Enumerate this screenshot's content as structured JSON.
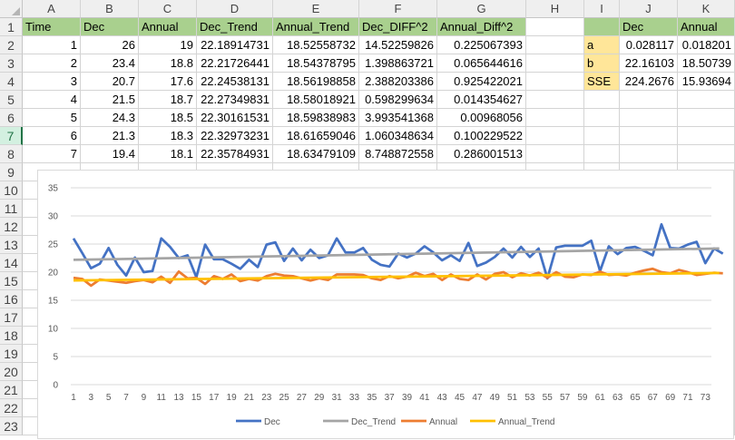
{
  "columns": [
    "A",
    "B",
    "C",
    "D",
    "E",
    "F",
    "G",
    "H",
    "I",
    "J",
    "K"
  ],
  "rows": [
    "1",
    "2",
    "3",
    "4",
    "5",
    "6",
    "7",
    "8",
    "9",
    "10",
    "11",
    "12",
    "13",
    "14",
    "15",
    "16",
    "17",
    "18",
    "19",
    "20",
    "21",
    "22",
    "23"
  ],
  "headers": [
    "Time",
    "Dec",
    "Annual",
    "Dec_Trend",
    "Annual_Trend",
    "Dec_DIFF^2",
    "Annual_Diff^2"
  ],
  "data_rows": [
    [
      "1",
      "26",
      "19",
      "22.18914731",
      "18.52558732",
      "14.52259826",
      "0.225067393"
    ],
    [
      "2",
      "23.4",
      "18.8",
      "22.21726441",
      "18.54378795",
      "1.398863721",
      "0.065644616"
    ],
    [
      "3",
      "20.7",
      "17.6",
      "22.24538131",
      "18.56198858",
      "2.388203386",
      "0.925422021"
    ],
    [
      "4",
      "21.5",
      "18.7",
      "22.27349831",
      "18.58018921",
      "0.598299634",
      "0.014354627"
    ],
    [
      "5",
      "24.3",
      "18.5",
      "22.30161531",
      "18.59838983",
      "3.993541368",
      "0.00968056"
    ],
    [
      "6",
      "21.3",
      "18.3",
      "22.32973231",
      "18.61659046",
      "1.060348634",
      "0.100229522"
    ],
    [
      "7",
      "19.4",
      "18.1",
      "22.35784931",
      "18.63479109",
      "8.748872558",
      "0.286001513"
    ]
  ],
  "params": {
    "headers": [
      "",
      "Dec",
      "Annual"
    ],
    "rows": [
      [
        "a",
        "0.028117",
        "0.018201"
      ],
      [
        "b",
        "22.16103",
        "18.50739"
      ],
      [
        "SSE",
        "224.2676",
        "15.93694"
      ]
    ]
  },
  "chart_data": {
    "type": "line",
    "x_ticks": [
      "1",
      "3",
      "5",
      "7",
      "9",
      "11",
      "13",
      "15",
      "17",
      "19",
      "21",
      "23",
      "25",
      "27",
      "29",
      "31",
      "33",
      "35",
      "37",
      "39",
      "41",
      "43",
      "45",
      "47",
      "49",
      "51",
      "53",
      "55",
      "57",
      "59",
      "61",
      "63",
      "65",
      "67",
      "69",
      "71",
      "73"
    ],
    "y_ticks": [
      "0",
      "5",
      "10",
      "15",
      "20",
      "25",
      "30",
      "35"
    ],
    "ylim": [
      0,
      35
    ],
    "xlim": [
      1,
      73
    ],
    "series": [
      {
        "name": "Dec",
        "color": "#4472c4",
        "values": [
          26,
          23.4,
          20.7,
          21.5,
          24.3,
          21.3,
          19.4,
          22.6,
          20,
          20.2,
          26,
          24.5,
          22.5,
          23,
          19.1,
          24.9,
          22.3,
          22.3,
          21.5,
          20.6,
          22.2,
          20.9,
          24.9,
          25.3,
          22,
          24.2,
          22.1,
          24,
          22.5,
          23,
          26,
          23.5,
          23.5,
          24.3,
          22.2,
          21.3,
          21,
          23.3,
          22.6,
          23.3,
          24.6,
          23.5,
          22.1,
          23,
          22,
          25.2,
          21.1,
          21.7,
          22.7,
          24.2,
          22.6,
          24.5,
          22.7,
          24.2,
          18.9,
          24.4,
          24.7,
          24.7,
          24.7,
          25.6,
          20.2,
          24.6,
          23.2,
          24.3,
          24.5,
          23.8,
          23,
          28.5,
          24.3,
          24.2,
          24.9,
          25.4,
          21.6,
          24.2,
          23.3
        ]
      },
      {
        "name": "Dec_Trend",
        "color": "#a5a5a5",
        "values": [
          22.19,
          24.21
        ]
      },
      {
        "name": "Annual",
        "color": "#ed7d31",
        "values": [
          19,
          18.8,
          17.6,
          18.7,
          18.5,
          18.3,
          18.1,
          18.4,
          18.6,
          18.2,
          19.2,
          18.1,
          20.1,
          18.9,
          19,
          17.9,
          19.3,
          18.8,
          19.6,
          18.4,
          18.8,
          18.5,
          19.3,
          19.7,
          19.4,
          19.3,
          18.9,
          18.5,
          18.9,
          18.6,
          19.6,
          19.6,
          19.6,
          19.5,
          18.9,
          18.6,
          19.3,
          18.9,
          19.2,
          19.9,
          19.3,
          19.7,
          18.6,
          19.6,
          18.8,
          18.6,
          19.6,
          18.7,
          19.7,
          20,
          19.1,
          19.8,
          19.4,
          19.9,
          19,
          20,
          19.2,
          19.1,
          19.6,
          19.5,
          20.1,
          19.5,
          19.6,
          19.4,
          19.9,
          20.3,
          20.6,
          20,
          19.8,
          20.4,
          20,
          19.5,
          19.7,
          19.9,
          19.8
        ]
      },
      {
        "name": "Annual_Trend",
        "color": "#ffc000",
        "values": [
          18.53,
          19.85
        ]
      }
    ]
  }
}
